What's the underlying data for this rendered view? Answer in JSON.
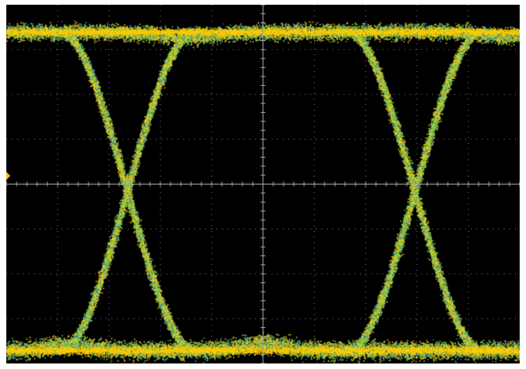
{
  "display": {
    "type": "eye-diagram",
    "background": "#000000",
    "frame_color": "#ffffff",
    "graticule_color": "#7a7a7a",
    "center_axis_color": "#a8a8a8",
    "trigger_marker_color": "#f2c400",
    "divisions": {
      "horizontal": 10,
      "vertical": 8
    },
    "grid": true,
    "trace_palette": [
      "#2a6fb0",
      "#2fa3a0",
      "#4fbf5a",
      "#a8cf3a",
      "#e6c52a",
      "#ffcc00"
    ]
  },
  "chart_data": {
    "type": "scatter",
    "title": "",
    "xlabel": "",
    "ylabel": "",
    "xlim": [
      0,
      10
    ],
    "ylim": [
      -4,
      4
    ],
    "grid": true,
    "levels": {
      "high": 3.4,
      "low": -3.7,
      "threshold": 0
    },
    "crossings_x": [
      2.35,
      7.95
    ],
    "transition_width": 2.6,
    "eye_opening": {
      "start_x": 3.6,
      "end_x": 6.7,
      "height": 6.8
    }
  }
}
